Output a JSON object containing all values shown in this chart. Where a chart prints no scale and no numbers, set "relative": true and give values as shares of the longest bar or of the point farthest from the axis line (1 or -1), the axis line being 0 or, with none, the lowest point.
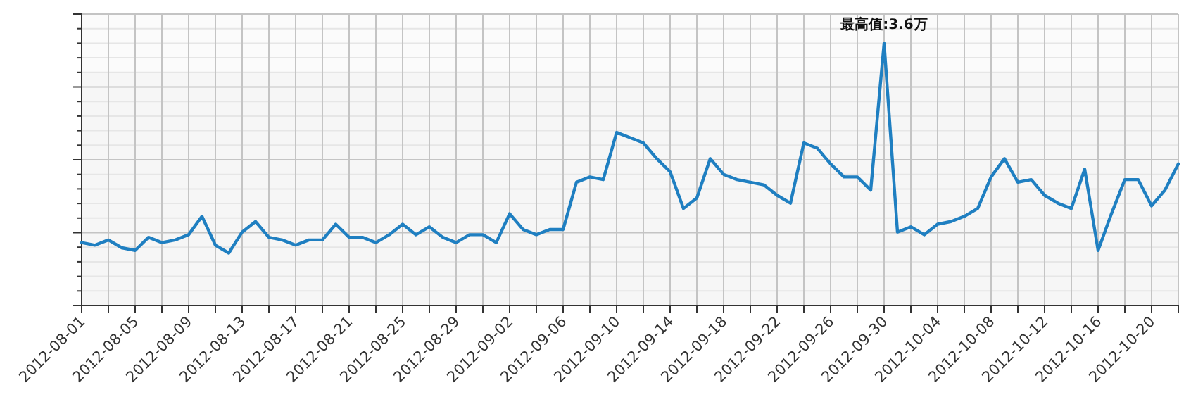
{
  "chart_data": {
    "type": "line",
    "relative": true,
    "color": "#1f7fc1",
    "marker": "none",
    "line_style": "solid",
    "grid": true,
    "tick_labels": "x",
    "xlim": [
      "2012-08-01",
      "2012-10-22"
    ],
    "xticks": [
      "2012-08-01",
      {
        "value": "2012-08-03",
        "label": null
      },
      "2012-08-05",
      {
        "value": "2012-08-07",
        "label": null
      },
      "2012-08-09",
      {
        "value": "2012-08-11",
        "label": null
      },
      "2012-08-13",
      {
        "value": "2012-08-15",
        "label": null
      },
      "2012-08-17",
      {
        "value": "2012-08-19",
        "label": null
      },
      "2012-08-21",
      {
        "value": "2012-08-23",
        "label": null
      },
      "2012-08-25",
      {
        "value": "2012-08-27",
        "label": null
      },
      "2012-08-29",
      {
        "value": "2012-08-31",
        "label": null
      },
      "2012-09-02",
      {
        "value": "2012-09-04",
        "label": null
      },
      "2012-09-06",
      {
        "value": "2012-09-08",
        "label": null
      },
      "2012-09-10",
      {
        "value": "2012-09-12",
        "label": null
      },
      "2012-09-14",
      {
        "value": "2012-09-16",
        "label": null
      },
      "2012-09-18",
      {
        "value": "2012-09-20",
        "label": null
      },
      "2012-09-22",
      {
        "value": "2012-09-24",
        "label": null
      },
      "2012-09-26",
      {
        "value": "2012-09-28",
        "label": null
      },
      "2012-09-30",
      {
        "value": "2012-10-02",
        "label": null
      },
      "2012-10-04",
      {
        "value": "2012-10-06",
        "label": null
      },
      "2012-10-08",
      {
        "value": "2012-10-10",
        "label": null
      },
      "2012-10-12",
      {
        "value": "2012-10-14",
        "label": null
      },
      "2012-10-16",
      {
        "value": "2012-10-18",
        "label": null
      },
      "2012-10-20",
      {
        "value": "2012-10-22",
        "label": null
      }
    ],
    "x": [
      "2012-08-01",
      "2012-08-02",
      "2012-08-03",
      "2012-08-04",
      "2012-08-05",
      "2012-08-06",
      "2012-08-07",
      "2012-08-08",
      "2012-08-09",
      "2012-08-10",
      "2012-08-11",
      "2012-08-12",
      "2012-08-13",
      "2012-08-14",
      "2012-08-15",
      "2012-08-16",
      "2012-08-17",
      "2012-08-18",
      "2012-08-19",
      "2012-08-20",
      "2012-08-21",
      "2012-08-22",
      "2012-08-23",
      "2012-08-24",
      "2012-08-25",
      "2012-08-26",
      "2012-08-27",
      "2012-08-28",
      "2012-08-29",
      "2012-08-30",
      "2012-08-31",
      "2012-09-01",
      "2012-09-02",
      "2012-09-03",
      "2012-09-04",
      "2012-09-05",
      "2012-09-06",
      "2012-09-07",
      "2012-09-08",
      "2012-09-09",
      "2012-09-10",
      "2012-09-11",
      "2012-09-12",
      "2012-09-13",
      "2012-09-14",
      "2012-09-15",
      "2012-09-16",
      "2012-09-17",
      "2012-09-18",
      "2012-09-19",
      "2012-09-20",
      "2012-09-21",
      "2012-09-22",
      "2012-09-23",
      "2012-09-24",
      "2012-09-25",
      "2012-09-26",
      "2012-09-27",
      "2012-09-28",
      "2012-09-29",
      "2012-09-30",
      "2012-10-01",
      "2012-10-02",
      "2012-10-03",
      "2012-10-04",
      "2012-10-05",
      "2012-10-06",
      "2012-10-07",
      "2012-10-08",
      "2012-10-09",
      "2012-10-10",
      "2012-10-11",
      "2012-10-12",
      "2012-10-13",
      "2012-10-14",
      "2012-10-15",
      "2012-10-16",
      "2012-10-17",
      "2012-10-18",
      "2012-10-19",
      "2012-10-20",
      "2012-10-21",
      "2012-10-22"
    ],
    "values": [
      0.24,
      0.23,
      0.25,
      0.22,
      0.21,
      0.26,
      0.24,
      0.25,
      0.27,
      0.34,
      0.23,
      0.2,
      0.28,
      0.32,
      0.26,
      0.25,
      0.23,
      0.25,
      0.25,
      0.31,
      0.26,
      0.26,
      0.24,
      0.27,
      0.31,
      0.27,
      0.3,
      0.26,
      0.24,
      0.27,
      0.27,
      0.24,
      0.35,
      0.29,
      0.27,
      0.29,
      0.29,
      0.47,
      0.49,
      0.48,
      0.66,
      0.64,
      0.62,
      0.56,
      0.51,
      0.37,
      0.41,
      0.56,
      0.5,
      0.48,
      0.47,
      0.46,
      0.42,
      0.39,
      0.62,
      0.6,
      0.54,
      0.49,
      0.49,
      0.44,
      1,
      0.28,
      0.3,
      0.27,
      0.31,
      0.32,
      0.34,
      0.37,
      0.49,
      0.56,
      0.47,
      0.48,
      0.42,
      0.39,
      0.37,
      0.52,
      0.21,
      0.35,
      0.48,
      0.48,
      0.38,
      0.44,
      0.54
    ],
    "annotations": [
      {
        "text": "最高值:3.6万",
        "x": "2012-09-30",
        "y": 1
      }
    ]
  }
}
